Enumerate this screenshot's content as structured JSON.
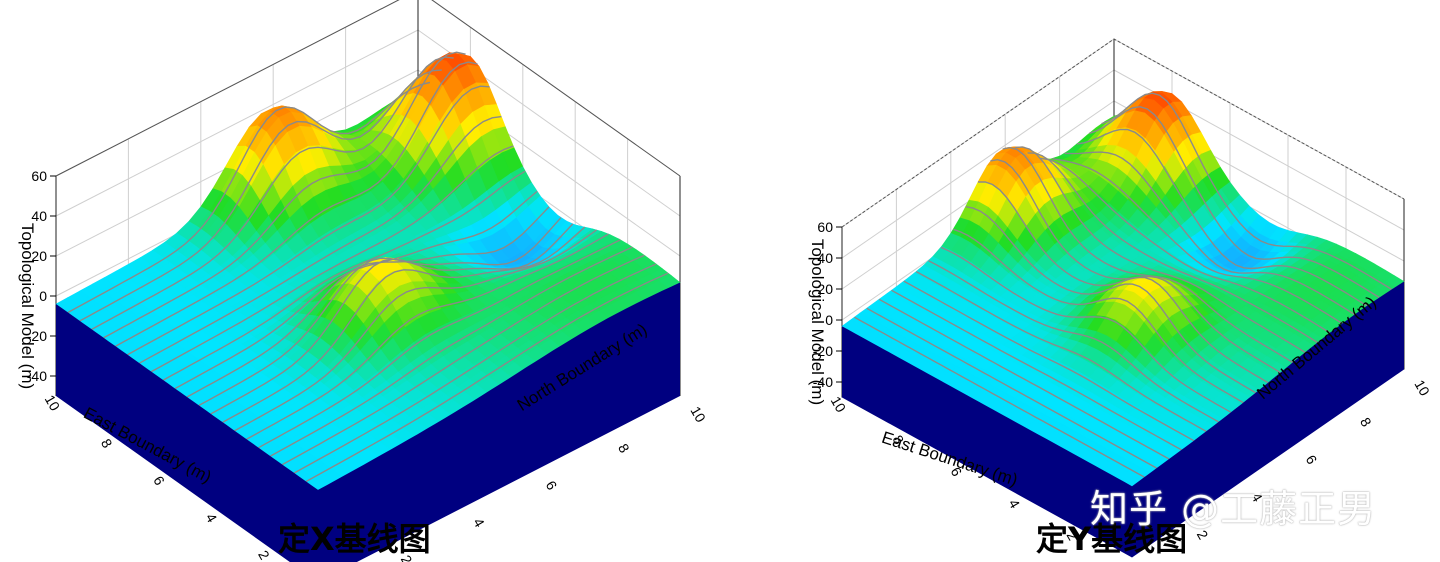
{
  "chart_data": [
    {
      "type": "surface3d",
      "title": "定X基线图",
      "xlabel": "East Boundary (m)",
      "ylabel": "North Boundary (m)",
      "zlabel": "Topological Model (m)",
      "x_ticks": [
        "2",
        "4",
        "6",
        "8",
        "10"
      ],
      "y_ticks": [
        "2",
        "4",
        "6",
        "8",
        "10"
      ],
      "z_ticks": [
        "60",
        "40",
        "20",
        "0",
        "-20",
        "-40"
      ],
      "xlim": [
        0,
        10
      ],
      "ylim": [
        0,
        10
      ],
      "zlim": [
        -50,
        60
      ],
      "baseline": "x",
      "colormap": [
        "#00008b",
        "#7b1fe0",
        "#1e90ff",
        "#00e5ff",
        "#22dd22",
        "#ffee00",
        "#ff8c00",
        "#ff0000"
      ],
      "base_color": "#000080",
      "contour_color": "#8a8a8a"
    },
    {
      "type": "surface3d",
      "title": "定Y基线图",
      "xlabel": "East Boundary (m)",
      "ylabel": "North Boundary (m)",
      "zlabel": "Topological Model (m)",
      "x_ticks": [
        "2",
        "4",
        "6",
        "8",
        "10"
      ],
      "y_ticks": [
        "2",
        "4",
        "6",
        "8",
        "10"
      ],
      "z_ticks": [
        "60",
        "40",
        "20",
        "0",
        "-20",
        "-40"
      ],
      "xlim": [
        0,
        10
      ],
      "ylim": [
        0,
        10
      ],
      "zlim": [
        -50,
        60
      ],
      "baseline": "y",
      "colormap": [
        "#00008b",
        "#7b1fe0",
        "#1e90ff",
        "#00e5ff",
        "#22dd22",
        "#ffee00",
        "#ff8c00",
        "#ff0000"
      ],
      "base_color": "#000080",
      "contour_color": "#8a8a8a"
    }
  ],
  "watermark": "知乎 @工藤正男"
}
